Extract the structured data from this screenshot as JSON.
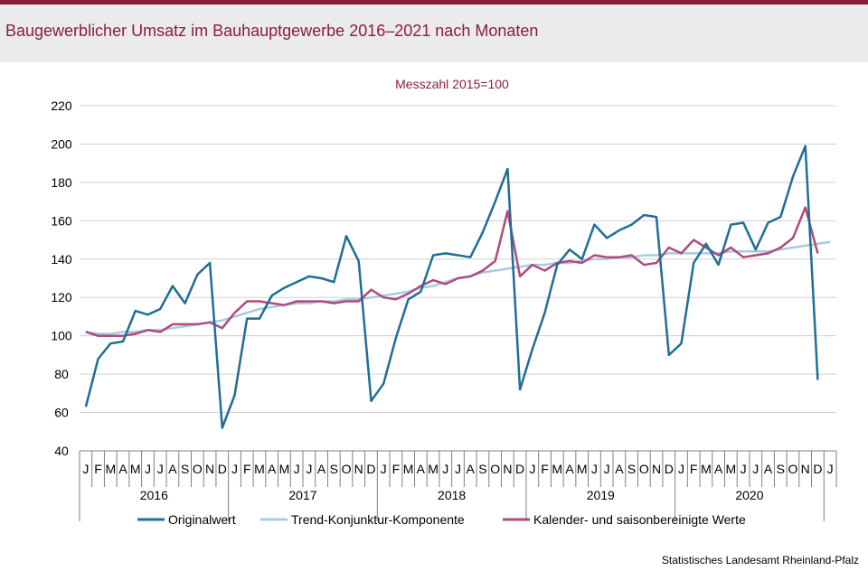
{
  "source": "Statistisches Landesamt Rheinland-Pfalz",
  "colors": {
    "accent": "#8c1d3a"
  },
  "chart_data": {
    "type": "line",
    "title": "Baugewerblicher Umsatz im Bauhauptgewerbe 2016–2021 nach Monaten",
    "subtitle": "Messzahl 2015=100",
    "ylim": [
      40,
      220
    ],
    "yticks": [
      40,
      60,
      80,
      100,
      120,
      140,
      160,
      180,
      200,
      220
    ],
    "grid": "horizontal",
    "legend_position": "bottom",
    "month_labels": [
      "J",
      "F",
      "M",
      "A",
      "M",
      "J",
      "J",
      "A",
      "S",
      "O",
      "N",
      "D",
      "J",
      "F",
      "M",
      "A",
      "M",
      "J",
      "J",
      "A",
      "S",
      "O",
      "N",
      "D",
      "J",
      "F",
      "M",
      "A",
      "M",
      "J",
      "J",
      "A",
      "S",
      "O",
      "N",
      "D",
      "J",
      "F",
      "M",
      "A",
      "M",
      "J",
      "J",
      "A",
      "S",
      "O",
      "N",
      "D",
      "J",
      "F",
      "M",
      "A",
      "M",
      "J",
      "J",
      "A",
      "S",
      "O",
      "N",
      "D",
      "J"
    ],
    "year_labels": [
      "2016",
      "2017",
      "2018",
      "2019",
      "2020"
    ],
    "series": [
      {
        "name": "Originalwert",
        "color": "#1f6e96",
        "width": 2.5,
        "values": [
          63,
          88,
          96,
          97,
          113,
          111,
          114,
          126,
          117,
          132,
          138,
          52,
          69,
          109,
          109,
          121,
          125,
          128,
          131,
          130,
          128,
          152,
          139,
          66,
          75,
          99,
          119,
          123,
          142,
          143,
          142,
          141,
          154,
          170,
          187,
          72,
          93,
          112,
          137,
          145,
          140,
          158,
          151,
          155,
          158,
          163,
          162,
          90,
          96,
          138,
          148,
          137,
          158,
          159,
          145,
          159,
          162,
          183,
          199,
          77
        ]
      },
      {
        "name": "Trend-Konjunktur-Komponente",
        "color": "#a6cbe0",
        "width": 2.5,
        "values": [
          102,
          101,
          101,
          102,
          102,
          103,
          103,
          104,
          105,
          106,
          107,
          108,
          110,
          112,
          114,
          115,
          116,
          117,
          117,
          118,
          118,
          119,
          119,
          120,
          121,
          122,
          123,
          125,
          126,
          128,
          130,
          131,
          133,
          134,
          135,
          136,
          137,
          137,
          138,
          138,
          139,
          140,
          140,
          141,
          141,
          142,
          142,
          143,
          143,
          143,
          143,
          143,
          144,
          144,
          144,
          144,
          145,
          146,
          147,
          148,
          149
        ]
      },
      {
        "name": "Kalender- und saisonbereinigte Werte",
        "color": "#b04a7e",
        "width": 2.5,
        "values": [
          102,
          100,
          100,
          100,
          101,
          103,
          102,
          106,
          106,
          106,
          107,
          104,
          112,
          118,
          118,
          117,
          116,
          118,
          118,
          118,
          117,
          118,
          118,
          124,
          120,
          119,
          122,
          126,
          129,
          127,
          130,
          131,
          134,
          139,
          165,
          131,
          137,
          134,
          138,
          139,
          138,
          142,
          141,
          141,
          142,
          137,
          138,
          146,
          143,
          150,
          146,
          142,
          146,
          141,
          142,
          143,
          146,
          151,
          167,
          143
        ]
      }
    ]
  }
}
